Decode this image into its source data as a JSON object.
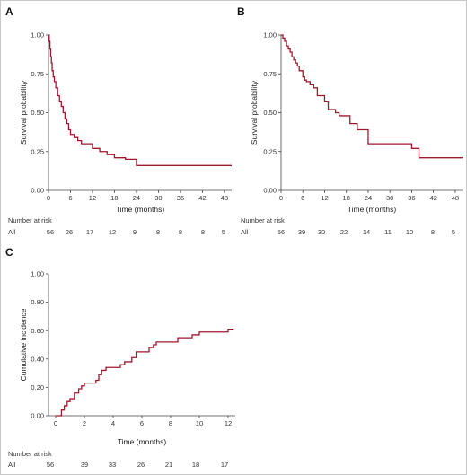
{
  "chart_data": [
    {
      "panel": "A",
      "type": "line",
      "title": "",
      "xlabel": "Time (months)",
      "ylabel": "Survival probability",
      "xlim": [
        0,
        50
      ],
      "ylim": [
        0,
        1
      ],
      "xticks": [
        "0",
        "6",
        "12",
        "18",
        "24",
        "30",
        "36",
        "42",
        "48"
      ],
      "xtick_values": [
        0,
        6,
        12,
        18,
        24,
        30,
        36,
        42,
        48
      ],
      "yticks": [
        "0.00",
        "0.25",
        "0.50",
        "0.75",
        "1.00"
      ],
      "ytick_values": [
        0,
        0.25,
        0.5,
        0.75,
        1
      ],
      "line_color": "#a0182e",
      "step": true,
      "series": [
        {
          "x": [
            0,
            0.2,
            0.4,
            0.6,
            0.8,
            1.0,
            1.3,
            1.6,
            2.0,
            2.5,
            3.0,
            3.5,
            4.0,
            4.5,
            5.0,
            5.5,
            6.0,
            7.0,
            8.0,
            9.0,
            10.0,
            12.0,
            14.0,
            16.0,
            18.0,
            21.0,
            24.0,
            50.0
          ],
          "y": [
            1.0,
            0.96,
            0.91,
            0.86,
            0.82,
            0.77,
            0.73,
            0.7,
            0.66,
            0.61,
            0.57,
            0.54,
            0.5,
            0.46,
            0.43,
            0.39,
            0.36,
            0.34,
            0.32,
            0.3,
            0.3,
            0.27,
            0.25,
            0.23,
            0.21,
            0.2,
            0.16,
            0.16
          ]
        }
      ],
      "risk_table": {
        "title": "Number at risk",
        "row_label": "All",
        "values": [
          "56",
          "26",
          "17",
          "12",
          "9",
          "8",
          "8",
          "8",
          "5"
        ]
      }
    },
    {
      "panel": "B",
      "type": "line",
      "title": "",
      "xlabel": "Time (months)",
      "ylabel": "Survival probability",
      "xlim": [
        0,
        50
      ],
      "ylim": [
        0,
        1
      ],
      "xticks": [
        "0",
        "6",
        "12",
        "18",
        "24",
        "30",
        "36",
        "42",
        "48"
      ],
      "xtick_values": [
        0,
        6,
        12,
        18,
        24,
        30,
        36,
        42,
        48
      ],
      "yticks": [
        "0.00",
        "0.25",
        "0.50",
        "0.75",
        "1.00"
      ],
      "ytick_values": [
        0,
        0.25,
        0.5,
        0.75,
        1
      ],
      "line_color": "#a0182e",
      "step": true,
      "series": [
        {
          "x": [
            0,
            0.5,
            1.0,
            1.5,
            2.0,
            2.5,
            3.0,
            3.5,
            4.0,
            4.5,
            5.0,
            6.0,
            6.5,
            7.0,
            8.0,
            9.0,
            10.0,
            12.0,
            13.0,
            15.0,
            16.0,
            19.0,
            21.0,
            24.0,
            32.0,
            36.0,
            38.0,
            50.0
          ],
          "y": [
            1.0,
            0.98,
            0.96,
            0.93,
            0.91,
            0.89,
            0.86,
            0.84,
            0.82,
            0.8,
            0.77,
            0.73,
            0.71,
            0.7,
            0.68,
            0.66,
            0.61,
            0.57,
            0.52,
            0.5,
            0.48,
            0.43,
            0.39,
            0.3,
            0.3,
            0.27,
            0.21,
            0.21
          ]
        }
      ],
      "risk_table": {
        "title": "Number at risk",
        "row_label": "All",
        "values": [
          "56",
          "39",
          "30",
          "22",
          "14",
          "11",
          "10",
          "8",
          "5"
        ]
      }
    },
    {
      "panel": "C",
      "type": "line",
      "title": "",
      "xlabel": "Time (months)",
      "ylabel": "Cumulative incidence",
      "xlim": [
        -0.5,
        12.5
      ],
      "ylim": [
        0,
        1
      ],
      "xticks": [
        "0",
        "2",
        "4",
        "6",
        "8",
        "10",
        "12"
      ],
      "xtick_values": [
        0,
        2,
        4,
        6,
        8,
        10,
        12
      ],
      "yticks": [
        "0.00",
        "0.20",
        "0.40",
        "0.60",
        "0.80",
        "1.00"
      ],
      "ytick_values": [
        0,
        0.2,
        0.4,
        0.6,
        0.8,
        1
      ],
      "line_color": "#a0182e",
      "step": true,
      "series": [
        {
          "x": [
            0,
            0.4,
            0.6,
            0.8,
            1.0,
            1.3,
            1.6,
            1.8,
            2.0,
            2.8,
            3.0,
            3.2,
            3.5,
            4.0,
            4.5,
            4.8,
            5.0,
            5.3,
            5.6,
            6.0,
            6.5,
            6.8,
            7.0,
            8.0,
            8.5,
            9.0,
            9.5,
            10.0,
            12.0,
            12.4
          ],
          "y": [
            0,
            0.04,
            0.07,
            0.1,
            0.12,
            0.16,
            0.19,
            0.21,
            0.23,
            0.25,
            0.29,
            0.32,
            0.34,
            0.34,
            0.36,
            0.38,
            0.38,
            0.41,
            0.45,
            0.45,
            0.48,
            0.5,
            0.52,
            0.52,
            0.55,
            0.55,
            0.57,
            0.59,
            0.61,
            0.61
          ]
        }
      ],
      "risk_table": {
        "title": "Number at risk",
        "row_label": "All",
        "values": [
          "56",
          "39",
          "33",
          "26",
          "21",
          "18",
          "17"
        ]
      }
    }
  ]
}
